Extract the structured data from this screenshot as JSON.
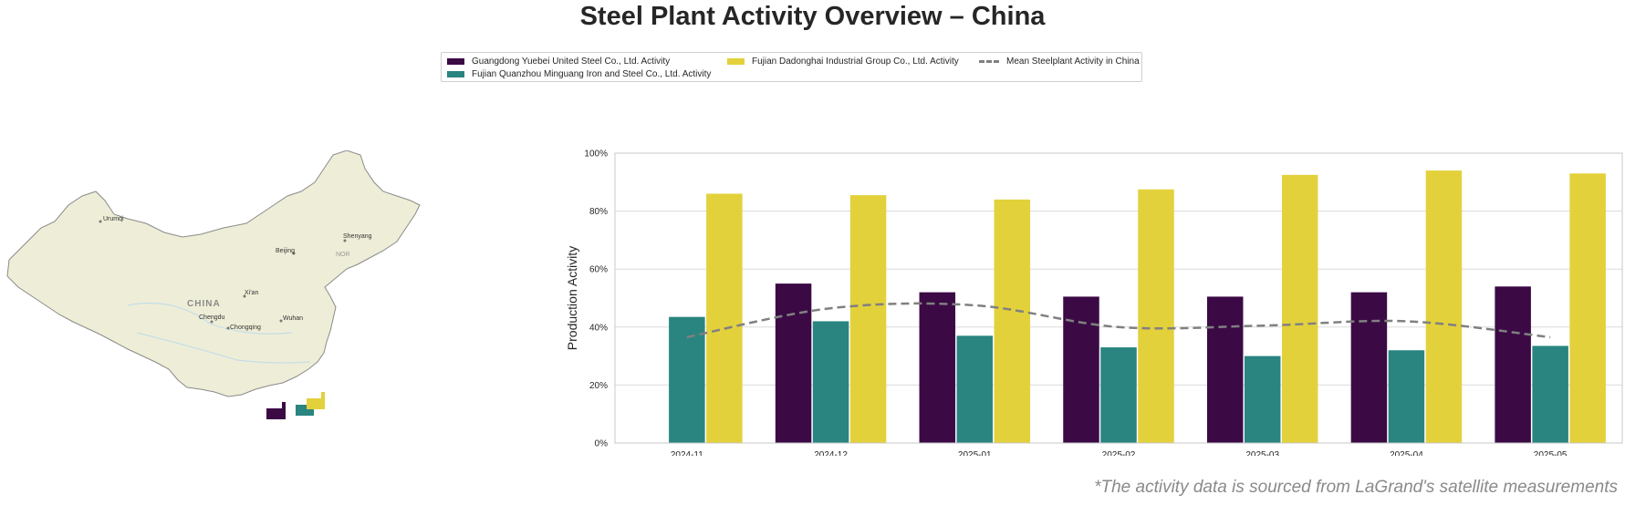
{
  "title": "Steel Plant Activity Overview – China",
  "legend": {
    "items": [
      {
        "label": "Guangdong Yuebei United Steel Co., Ltd. Activity",
        "color": "#3b0a45",
        "kind": "bar"
      },
      {
        "label": "Fujian Quanzhou Minguang Iron and Steel Co., Ltd. Activity",
        "color": "#2a8480",
        "kind": "bar"
      },
      {
        "label": "Fujian Dadonghai Industrial Group Co., Ltd. Activity",
        "color": "#e3d13c",
        "kind": "bar"
      },
      {
        "label": "Mean Steelplant Activity in China",
        "color": "#808080",
        "kind": "dashed-line"
      }
    ]
  },
  "map": {
    "country_label": "CHINA",
    "cities": [
      "Urumqi",
      "Beijing",
      "Shenyang",
      "Xi'an",
      "Chengdu",
      "Chongqing",
      "Wuhan"
    ],
    "region_label": "NOR",
    "land_color": "#eeeed8",
    "marker_colors": [
      "#3b0a45",
      "#2a8480",
      "#e3d13c"
    ]
  },
  "chart_data": {
    "type": "bar",
    "categories": [
      "2024-11",
      "2024-12",
      "2025-01",
      "2025-02",
      "2025-03",
      "2025-04",
      "2025-05"
    ],
    "series": [
      {
        "name": "Guangdong Yuebei United Steel Co., Ltd. Activity",
        "color": "#3b0a45",
        "values": [
          null,
          55,
          52,
          50.5,
          50.5,
          52,
          54
        ]
      },
      {
        "name": "Fujian Quanzhou Minguang Iron and Steel Co., Ltd. Activity",
        "color": "#2a8480",
        "values": [
          43.5,
          42,
          37,
          33,
          30,
          32,
          33.5
        ]
      },
      {
        "name": "Fujian Dadonghai Industrial Group Co., Ltd. Activity",
        "color": "#e3d13c",
        "values": [
          86,
          85.5,
          84,
          87.5,
          92.5,
          94,
          93
        ]
      },
      {
        "name": "Mean Steelplant Activity in China",
        "color": "#808080",
        "type": "line",
        "style": "dashed",
        "values": [
          36.5,
          46.5,
          47.5,
          40,
          40.5,
          42,
          36.5
        ]
      }
    ],
    "ylabel": "Production Activity",
    "xlabel": "",
    "ylim": [
      0,
      100
    ],
    "yticks": [
      "0%",
      "20%",
      "40%",
      "60%",
      "80%",
      "100%"
    ],
    "grid": true
  },
  "footnote": "*The activity data is sourced from LaGrand's satellite measurements"
}
